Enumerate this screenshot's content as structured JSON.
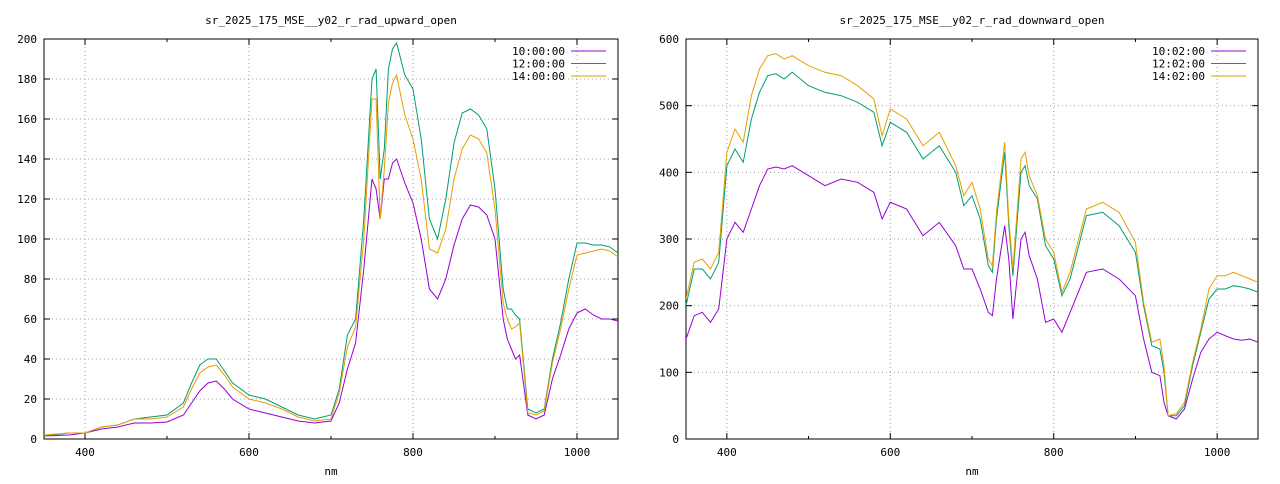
{
  "chart_data": [
    {
      "type": "line",
      "title": "sr_2025_175_MSE__y02_r_rad_upward_open",
      "xlabel": "nm",
      "ylabel": "",
      "xlim": [
        350,
        1050
      ],
      "ylim": [
        0,
        200
      ],
      "xticks": [
        400,
        600,
        800,
        1000
      ],
      "yticks": [
        0,
        20,
        40,
        60,
        80,
        100,
        120,
        140,
        160,
        180,
        200
      ],
      "grid": true,
      "legend_position": "top-right",
      "series": [
        {
          "name": "10:00:00",
          "color": "#9400d3",
          "x": [
            350,
            380,
            400,
            420,
            440,
            460,
            480,
            500,
            520,
            530,
            540,
            550,
            560,
            570,
            580,
            600,
            620,
            640,
            660,
            680,
            700,
            710,
            720,
            730,
            740,
            750,
            755,
            760,
            765,
            770,
            775,
            780,
            790,
            800,
            810,
            820,
            830,
            840,
            850,
            860,
            870,
            880,
            890,
            900,
            910,
            915,
            920,
            925,
            930,
            940,
            950,
            960,
            970,
            980,
            990,
            1000,
            1010,
            1020,
            1030,
            1040,
            1050
          ],
          "y": [
            1.5,
            2,
            3,
            5,
            6,
            8,
            8,
            8.5,
            12,
            18,
            24,
            28,
            29,
            25,
            20,
            15,
            13,
            11,
            9,
            8,
            9,
            18,
            35,
            48,
            85,
            130,
            125,
            110,
            130,
            130,
            138,
            140,
            128,
            118,
            100,
            75,
            70,
            80,
            97,
            110,
            117,
            116,
            112,
            100,
            60,
            50,
            45,
            40,
            42,
            12,
            10,
            12,
            30,
            42,
            55,
            63,
            65,
            62,
            60,
            60,
            59
          ]
        },
        {
          "name": "12:00:00",
          "color": "#009e73",
          "x": [
            350,
            380,
            400,
            420,
            440,
            460,
            480,
            500,
            520,
            530,
            540,
            550,
            560,
            570,
            580,
            600,
            620,
            640,
            660,
            680,
            700,
            710,
            720,
            730,
            740,
            750,
            755,
            760,
            765,
            770,
            775,
            780,
            790,
            800,
            810,
            820,
            830,
            840,
            850,
            860,
            870,
            880,
            890,
            900,
            910,
            915,
            920,
            925,
            930,
            940,
            950,
            960,
            970,
            980,
            990,
            1000,
            1010,
            1020,
            1030,
            1040,
            1050
          ],
          "y": [
            1.5,
            3,
            3,
            6,
            7,
            10,
            11,
            12,
            18,
            28,
            37,
            40,
            40,
            34,
            28,
            22,
            20,
            16,
            12,
            10,
            12,
            25,
            52,
            60,
            110,
            180,
            185,
            130,
            145,
            185,
            195,
            198,
            182,
            175,
            150,
            110,
            100,
            120,
            148,
            163,
            165,
            162,
            155,
            125,
            75,
            65,
            65,
            62,
            60,
            15,
            13,
            15,
            40,
            58,
            80,
            98,
            98,
            97,
            97,
            96,
            93
          ]
        },
        {
          "name": "14:00:00",
          "color": "#e69f00",
          "x": [
            350,
            380,
            400,
            420,
            440,
            460,
            480,
            500,
            520,
            530,
            540,
            550,
            560,
            570,
            580,
            600,
            620,
            640,
            660,
            680,
            700,
            710,
            720,
            730,
            740,
            750,
            755,
            760,
            765,
            770,
            775,
            780,
            790,
            800,
            810,
            820,
            830,
            840,
            850,
            860,
            870,
            880,
            890,
            900,
            910,
            915,
            920,
            925,
            930,
            940,
            950,
            960,
            970,
            980,
            990,
            1000,
            1010,
            1020,
            1030,
            1040,
            1050
          ],
          "y": [
            2,
            3,
            3,
            6,
            7,
            10,
            10,
            11,
            16,
            25,
            33,
            36,
            37,
            32,
            26,
            20,
            18,
            15,
            11,
            9,
            10,
            23,
            46,
            56,
            100,
            170,
            170,
            110,
            135,
            168,
            178,
            182,
            162,
            150,
            130,
            95,
            93,
            105,
            130,
            145,
            152,
            150,
            143,
            115,
            68,
            60,
            55,
            56,
            58,
            13,
            12,
            14,
            38,
            55,
            75,
            92,
            93,
            94,
            95,
            94,
            91
          ]
        }
      ]
    },
    {
      "type": "line",
      "title": "sr_2025_175_MSE__y02_r_rad_downward_open",
      "xlabel": "nm",
      "ylabel": "",
      "xlim": [
        350,
        1050
      ],
      "ylim": [
        0,
        600
      ],
      "xticks": [
        400,
        600,
        800,
        1000
      ],
      "yticks": [
        0,
        100,
        200,
        300,
        400,
        500,
        600
      ],
      "grid": true,
      "legend_position": "top-right",
      "series": [
        {
          "name": "10:02:00",
          "color": "#9400d3",
          "x": [
            350,
            360,
            370,
            380,
            390,
            400,
            410,
            420,
            430,
            440,
            450,
            460,
            470,
            480,
            500,
            520,
            540,
            560,
            580,
            590,
            600,
            620,
            640,
            660,
            680,
            690,
            700,
            710,
            720,
            725,
            730,
            740,
            745,
            750,
            760,
            765,
            770,
            780,
            790,
            800,
            810,
            820,
            840,
            860,
            880,
            900,
            910,
            920,
            930,
            935,
            940,
            950,
            960,
            970,
            980,
            990,
            1000,
            1010,
            1020,
            1030,
            1040,
            1050
          ],
          "y": [
            150,
            185,
            190,
            175,
            195,
            300,
            325,
            310,
            345,
            380,
            405,
            408,
            405,
            410,
            395,
            380,
            390,
            385,
            370,
            330,
            355,
            345,
            305,
            325,
            290,
            255,
            255,
            225,
            190,
            185,
            240,
            320,
            270,
            180,
            300,
            310,
            275,
            240,
            175,
            180,
            160,
            190,
            250,
            255,
            240,
            215,
            150,
            100,
            95,
            55,
            35,
            30,
            45,
            90,
            130,
            150,
            160,
            155,
            150,
            148,
            150,
            145
          ]
        },
        {
          "name": "12:02:00",
          "color": "#009e73",
          "x": [
            350,
            360,
            370,
            380,
            390,
            400,
            410,
            420,
            430,
            440,
            450,
            460,
            470,
            480,
            500,
            520,
            540,
            560,
            580,
            590,
            600,
            620,
            640,
            660,
            680,
            690,
            700,
            710,
            720,
            725,
            730,
            740,
            745,
            750,
            760,
            765,
            770,
            780,
            790,
            800,
            810,
            820,
            840,
            860,
            880,
            900,
            910,
            920,
            930,
            935,
            940,
            950,
            960,
            970,
            980,
            990,
            1000,
            1010,
            1020,
            1030,
            1040,
            1050
          ],
          "y": [
            200,
            255,
            255,
            240,
            265,
            410,
            435,
            415,
            480,
            520,
            545,
            548,
            540,
            550,
            530,
            520,
            515,
            505,
            490,
            440,
            475,
            460,
            420,
            440,
            400,
            350,
            365,
            330,
            260,
            250,
            330,
            430,
            320,
            245,
            400,
            410,
            380,
            360,
            290,
            270,
            215,
            240,
            335,
            340,
            320,
            280,
            200,
            140,
            135,
            100,
            35,
            35,
            50,
            110,
            160,
            210,
            225,
            225,
            230,
            228,
            225,
            220
          ]
        },
        {
          "name": "14:02:00",
          "color": "#e69f00",
          "x": [
            350,
            360,
            370,
            380,
            390,
            400,
            410,
            420,
            430,
            440,
            450,
            460,
            470,
            480,
            500,
            520,
            540,
            560,
            580,
            590,
            600,
            620,
            640,
            660,
            680,
            690,
            700,
            710,
            720,
            725,
            730,
            740,
            745,
            750,
            760,
            765,
            770,
            780,
            790,
            800,
            810,
            820,
            840,
            860,
            880,
            900,
            910,
            920,
            930,
            935,
            940,
            950,
            960,
            970,
            980,
            990,
            1000,
            1010,
            1020,
            1030,
            1040,
            1050
          ],
          "y": [
            210,
            265,
            270,
            255,
            280,
            430,
            465,
            445,
            515,
            555,
            575,
            578,
            570,
            575,
            560,
            550,
            545,
            530,
            510,
            455,
            495,
            480,
            440,
            460,
            410,
            365,
            385,
            345,
            270,
            260,
            340,
            445,
            330,
            255,
            420,
            430,
            395,
            365,
            300,
            280,
            220,
            250,
            345,
            355,
            340,
            295,
            205,
            145,
            150,
            110,
            35,
            38,
            55,
            115,
            165,
            225,
            245,
            245,
            250,
            245,
            240,
            235
          ]
        }
      ]
    }
  ]
}
